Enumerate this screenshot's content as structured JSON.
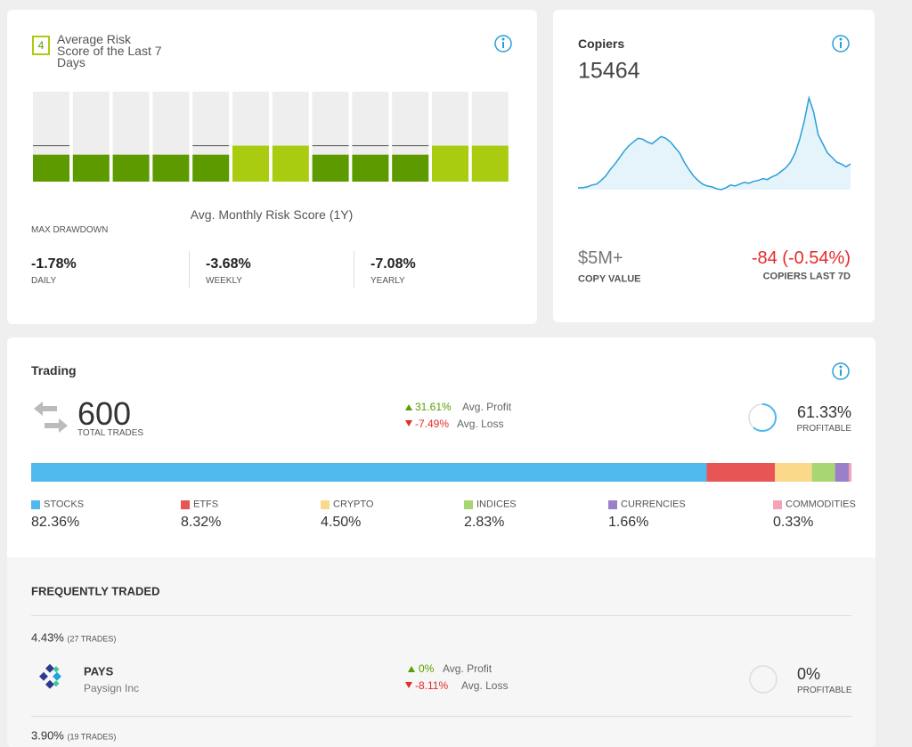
{
  "risk": {
    "badge": "4",
    "title": "Average Risk Score of the Last 7 Days",
    "chart_data": {
      "type": "bar",
      "ylim": [
        0,
        10
      ],
      "values": [
        3,
        3,
        3,
        3,
        3,
        4,
        4,
        3,
        3,
        3,
        4,
        4
      ],
      "markers": [
        4,
        null,
        null,
        null,
        4,
        null,
        null,
        4,
        4,
        4,
        null,
        null
      ],
      "colors": [
        "#5c9a00",
        "#5c9a00",
        "#5c9a00",
        "#5c9a00",
        "#5c9a00",
        "#a9cc10",
        "#a9cc10",
        "#5c9a00",
        "#5c9a00",
        "#5c9a00",
        "#a9cc10",
        "#a9cc10"
      ]
    },
    "caption": "Avg. Monthly Risk Score (1Y)"
  },
  "drawdown": {
    "label": "MAX DRAWDOWN",
    "items": [
      {
        "value": "-1.78%",
        "label": "DAILY"
      },
      {
        "value": "-3.68%",
        "label": "WEEKLY"
      },
      {
        "value": "-7.08%",
        "label": "YEARLY"
      }
    ]
  },
  "copiers": {
    "title": "Copiers",
    "count": "15464",
    "chart_data": {
      "type": "area",
      "ylim": [
        0,
        100
      ],
      "color": "#2a9fd8",
      "values": [
        2,
        2,
        3,
        5,
        6,
        10,
        15,
        22,
        28,
        35,
        42,
        48,
        52,
        56,
        55,
        52,
        50,
        54,
        58,
        56,
        52,
        46,
        40,
        30,
        22,
        15,
        10,
        6,
        4,
        3,
        1,
        0,
        2,
        5,
        4,
        6,
        8,
        7,
        9,
        10,
        12,
        11,
        14,
        16,
        20,
        24,
        30,
        40,
        55,
        75,
        100,
        85,
        60,
        50,
        40,
        35,
        30,
        28,
        25,
        28
      ]
    },
    "copy_value": "$5M+",
    "copy_value_label": "COPY VALUE",
    "change": "-84 (-0.54%)",
    "change_label": "COPIERS LAST 7D"
  },
  "trading": {
    "title": "Trading",
    "total": "600",
    "total_label": "TOTAL TRADES",
    "avg_profit": "31.61%",
    "avg_profit_label": "Avg. Profit",
    "avg_loss": "-7.49%",
    "avg_loss_label": "Avg. Loss",
    "profitable": {
      "chart_data": {
        "type": "ring",
        "ylim": [
          0,
          100
        ],
        "values": [
          61.33
        ],
        "value_labels": [
          "61.33%"
        ],
        "color": "#4fb8ec"
      },
      "label": "PROFITABLE"
    },
    "allocation": {
      "chart_data": {
        "type": "stacked-bar",
        "categories": [
          "STOCKS",
          "ETFS",
          "CRYPTO",
          "INDICES",
          "CURRENCIES",
          "COMMODITIES"
        ],
        "values": [
          82.36,
          8.32,
          4.5,
          2.83,
          1.66,
          0.33
        ],
        "value_labels": [
          "82.36%",
          "8.32%",
          "4.50%",
          "2.83%",
          "1.66%",
          "0.33%"
        ],
        "colors": [
          "#4fb8ec",
          "#e85555",
          "#fbd98a",
          "#a8d672",
          "#9b7fc9",
          "#f5a4b5"
        ]
      }
    }
  },
  "frequent": {
    "title": "FREQUENTLY TRADED",
    "items": [
      {
        "share": "4.43%",
        "trades": "(27 TRADES)",
        "ticker": "PAYS",
        "name": "Paysign Inc",
        "avg_profit": "0%",
        "avg_profit_label": "Avg. Profit",
        "avg_loss": "-8.11%",
        "avg_loss_label": "Avg. Loss",
        "profitable": {
          "chart_data": {
            "type": "ring",
            "ylim": [
              0,
              100
            ],
            "values": [
              0
            ],
            "value_labels": [
              "0%"
            ],
            "color": "#4fb8ec"
          },
          "label": "PROFITABLE"
        }
      },
      {
        "share": "3.90%",
        "trades": "(19 TRADES)"
      }
    ]
  }
}
